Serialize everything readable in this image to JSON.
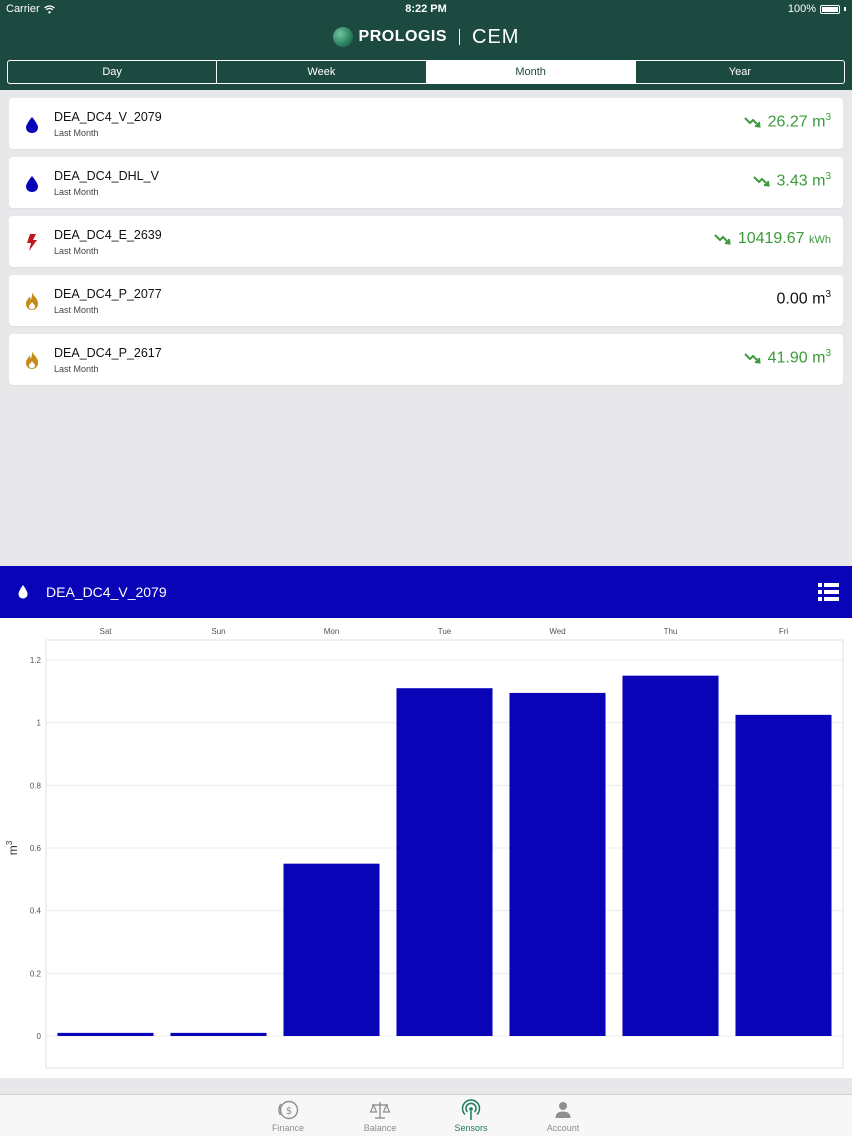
{
  "status": {
    "carrier": "Carrier",
    "time": "8:22 PM",
    "battery": "100%"
  },
  "brand": {
    "name": "PROLOGIS",
    "product": "CEM"
  },
  "segments": [
    {
      "label": "Day",
      "active": false
    },
    {
      "label": "Week",
      "active": false
    },
    {
      "label": "Month",
      "active": true
    },
    {
      "label": "Year",
      "active": false
    }
  ],
  "sensors": [
    {
      "name": "DEA_DC4_V_2079",
      "period": "Last Month",
      "value": "26.27",
      "unit": "m",
      "unit_sup": "3",
      "trend": "down",
      "icon": "water-drop-icon"
    },
    {
      "name": "DEA_DC4_DHL_V",
      "period": "Last Month",
      "value": "3.43",
      "unit": "m",
      "unit_sup": "3",
      "trend": "down",
      "icon": "water-drop-icon"
    },
    {
      "name": "DEA_DC4_E_2639",
      "period": "Last Month",
      "value": "10419.67",
      "unit": "kWh",
      "unit_sup": "",
      "trend": "down",
      "icon": "lightning-icon"
    },
    {
      "name": "DEA_DC4_P_2077",
      "period": "Last Month",
      "value": "0.00",
      "unit": "m",
      "unit_sup": "3",
      "trend": "none",
      "icon": "flame-icon"
    },
    {
      "name": "DEA_DC4_P_2617",
      "period": "Last Month",
      "value": "41.90",
      "unit": "m",
      "unit_sup": "3",
      "trend": "down",
      "icon": "flame-icon"
    }
  ],
  "detail": {
    "title": "DEA_DC4_V_2079"
  },
  "colors": {
    "header": "#1d4a40",
    "accent": "#0a04b8",
    "trend": "#3b9a3b",
    "water": "#0a04b8",
    "electric": "#c0171c",
    "gas": "#c58a17"
  },
  "chart_data": {
    "type": "bar",
    "categories": [
      "Sat",
      "Sun",
      "Mon",
      "Tue",
      "Wed",
      "Thu",
      "Fri"
    ],
    "values": [
      0.01,
      0.01,
      0.55,
      1.11,
      1.095,
      1.15,
      1.025
    ],
    "ylabel": "m",
    "ylabel_sup": "3",
    "ylim": [
      0,
      1.2
    ],
    "yticks": [
      "0",
      "0.2",
      "0.4",
      "0.6",
      "0.8",
      "1",
      "1.2"
    ],
    "ytick_values": [
      0,
      0.2,
      0.4,
      0.6,
      0.8,
      1,
      1.2
    ],
    "xaxis_position": "top",
    "grid": true,
    "bar_color": "#0a04b8"
  },
  "tabs": [
    {
      "label": "Finance",
      "icon": "finance-icon",
      "active": false
    },
    {
      "label": "Balance",
      "icon": "balance-icon",
      "active": false
    },
    {
      "label": "Sensors",
      "icon": "sensors-icon",
      "active": true
    },
    {
      "label": "Account",
      "icon": "account-icon",
      "active": false
    }
  ]
}
